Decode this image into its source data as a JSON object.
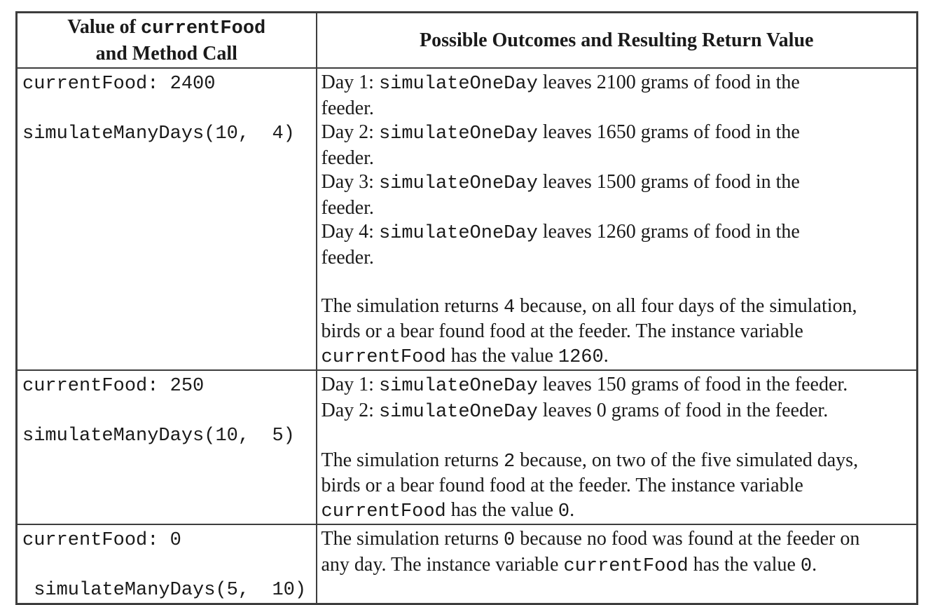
{
  "page": {
    "background_color": "#ffffff",
    "text_color": "#1a1a1a",
    "border_color": "#3d3d3d"
  },
  "table": {
    "header": {
      "col1_lines": [
        [
          {
            "text": "Value of ",
            "bold": true
          },
          {
            "text": "currentFood",
            "mono": true
          }
        ],
        [
          {
            "text": "and Method Call",
            "bold": true
          }
        ]
      ],
      "col2_lines": [
        [
          {
            "text": "Possible Outcomes and Resulting Return Value",
            "bold": true
          }
        ]
      ]
    },
    "rows": [
      {
        "left_lines": [
          [
            {
              "text": "currentFood: 2400",
              "mono": true
            }
          ],
          [],
          [
            {
              "text": "simulateManyDays(10,  4)",
              "mono": true
            }
          ]
        ],
        "right_lines": [
          [
            {
              "text": "Day 1: "
            },
            {
              "text": "simulateOneDay",
              "mono": true
            },
            {
              "text": " leaves 2100 grams of food in the"
            }
          ],
          [
            {
              "text": "feeder."
            }
          ],
          [
            {
              "text": "Day 2: "
            },
            {
              "text": "simulateOneDay",
              "mono": true
            },
            {
              "text": " leaves 1650 grams of food in the"
            }
          ],
          [
            {
              "text": "feeder."
            }
          ],
          [
            {
              "text": "Day 3: "
            },
            {
              "text": "simulateOneDay",
              "mono": true
            },
            {
              "text": " leaves 1500 grams of food in the"
            }
          ],
          [
            {
              "text": "feeder."
            }
          ],
          [
            {
              "text": "Day 4: "
            },
            {
              "text": "simulateOneDay",
              "mono": true
            },
            {
              "text": " leaves 1260 grams of food in the"
            }
          ],
          [
            {
              "text": "feeder."
            }
          ],
          [],
          [
            {
              "text": "The simulation returns "
            },
            {
              "text": "4",
              "mono": true
            },
            {
              "text": " because, on all four days of the simulation,"
            }
          ],
          [
            {
              "text": "birds or a bear found food at the feeder. The instance variable"
            }
          ],
          [
            {
              "text": "currentFood",
              "mono": true
            },
            {
              "text": " has the value "
            },
            {
              "text": "1260",
              "mono": true
            },
            {
              "text": "."
            }
          ]
        ]
      },
      {
        "left_lines": [
          [
            {
              "text": "currentFood: 250",
              "mono": true
            }
          ],
          [],
          [
            {
              "text": "simulateManyDays(10,  5)",
              "mono": true
            }
          ]
        ],
        "right_lines": [
          [
            {
              "text": "Day 1: "
            },
            {
              "text": "simulateOneDay",
              "mono": true
            },
            {
              "text": " leaves 150 grams of food in the feeder."
            }
          ],
          [
            {
              "text": "Day 2: "
            },
            {
              "text": "simulateOneDay",
              "mono": true
            },
            {
              "text": " leaves 0 grams of food in the feeder."
            }
          ],
          [],
          [
            {
              "text": "The simulation returns "
            },
            {
              "text": "2",
              "mono": true
            },
            {
              "text": " because, on two of the five simulated days,"
            }
          ],
          [
            {
              "text": "birds or a bear found food at the feeder. The instance variable"
            }
          ],
          [
            {
              "text": "currentFood",
              "mono": true
            },
            {
              "text": " has the value "
            },
            {
              "text": "0",
              "mono": true
            },
            {
              "text": "."
            }
          ]
        ]
      },
      {
        "left_lines": [
          [
            {
              "text": "currentFood: 0",
              "mono": true
            }
          ],
          [],
          [
            {
              "text": " simulateManyDays(5,  10)",
              "mono": true
            }
          ]
        ],
        "right_lines": [
          [
            {
              "text": "The simulation returns "
            },
            {
              "text": "0",
              "mono": true
            },
            {
              "text": " because no food was found at the feeder on"
            }
          ],
          [
            {
              "text": "any day. The instance variable "
            },
            {
              "text": "currentFood",
              "mono": true
            },
            {
              "text": " has the value "
            },
            {
              "text": "0",
              "mono": true
            },
            {
              "text": "."
            }
          ]
        ]
      }
    ]
  }
}
